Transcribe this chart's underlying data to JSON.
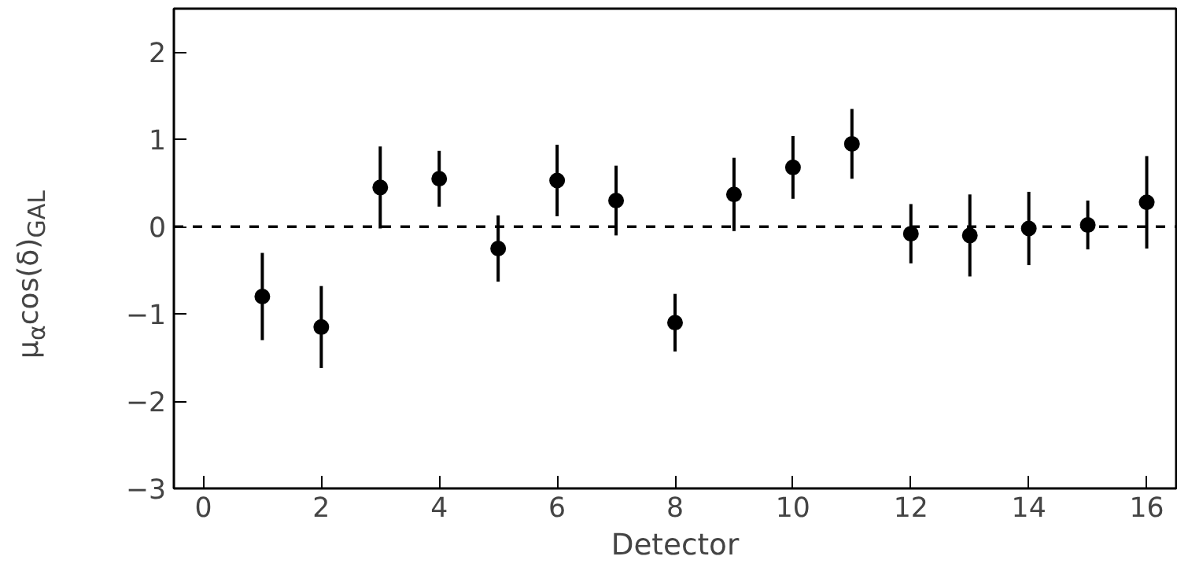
{
  "chart_data": {
    "type": "scatter",
    "xlabel": "Detector",
    "ylabel": "μ$_{α}$cos(δ)$_{GAL}$",
    "x": [
      1,
      2,
      3,
      4,
      5,
      6,
      7,
      8,
      9,
      10,
      11,
      12,
      13,
      14,
      15,
      16
    ],
    "series": [
      {
        "color": "#000000",
        "values": [
          -0.8,
          -1.15,
          0.45,
          0.55,
          -0.25,
          0.53,
          0.3,
          -1.1,
          0.37,
          0.68,
          0.95,
          -0.08,
          -0.1,
          -0.02,
          0.02,
          0.28
        ],
        "errors": [
          0.5,
          0.47,
          0.47,
          0.32,
          0.38,
          0.41,
          0.4,
          0.33,
          0.42,
          0.36,
          0.4,
          0.34,
          0.47,
          0.42,
          0.28,
          0.53
        ]
      }
    ],
    "xlim": [
      -0.5,
      16.5
    ],
    "ylim": [
      -3,
      2.5
    ],
    "xticks": [
      0,
      2,
      4,
      6,
      8,
      10,
      12,
      14,
      16
    ],
    "yticks": [
      -3,
      -2,
      -1,
      0,
      1,
      2
    ],
    "marker": "circle",
    "grid": false,
    "ref_lines": [
      {
        "axis": "y",
        "value": 0,
        "color": "#000000",
        "line_style": "dashed"
      }
    ]
  }
}
